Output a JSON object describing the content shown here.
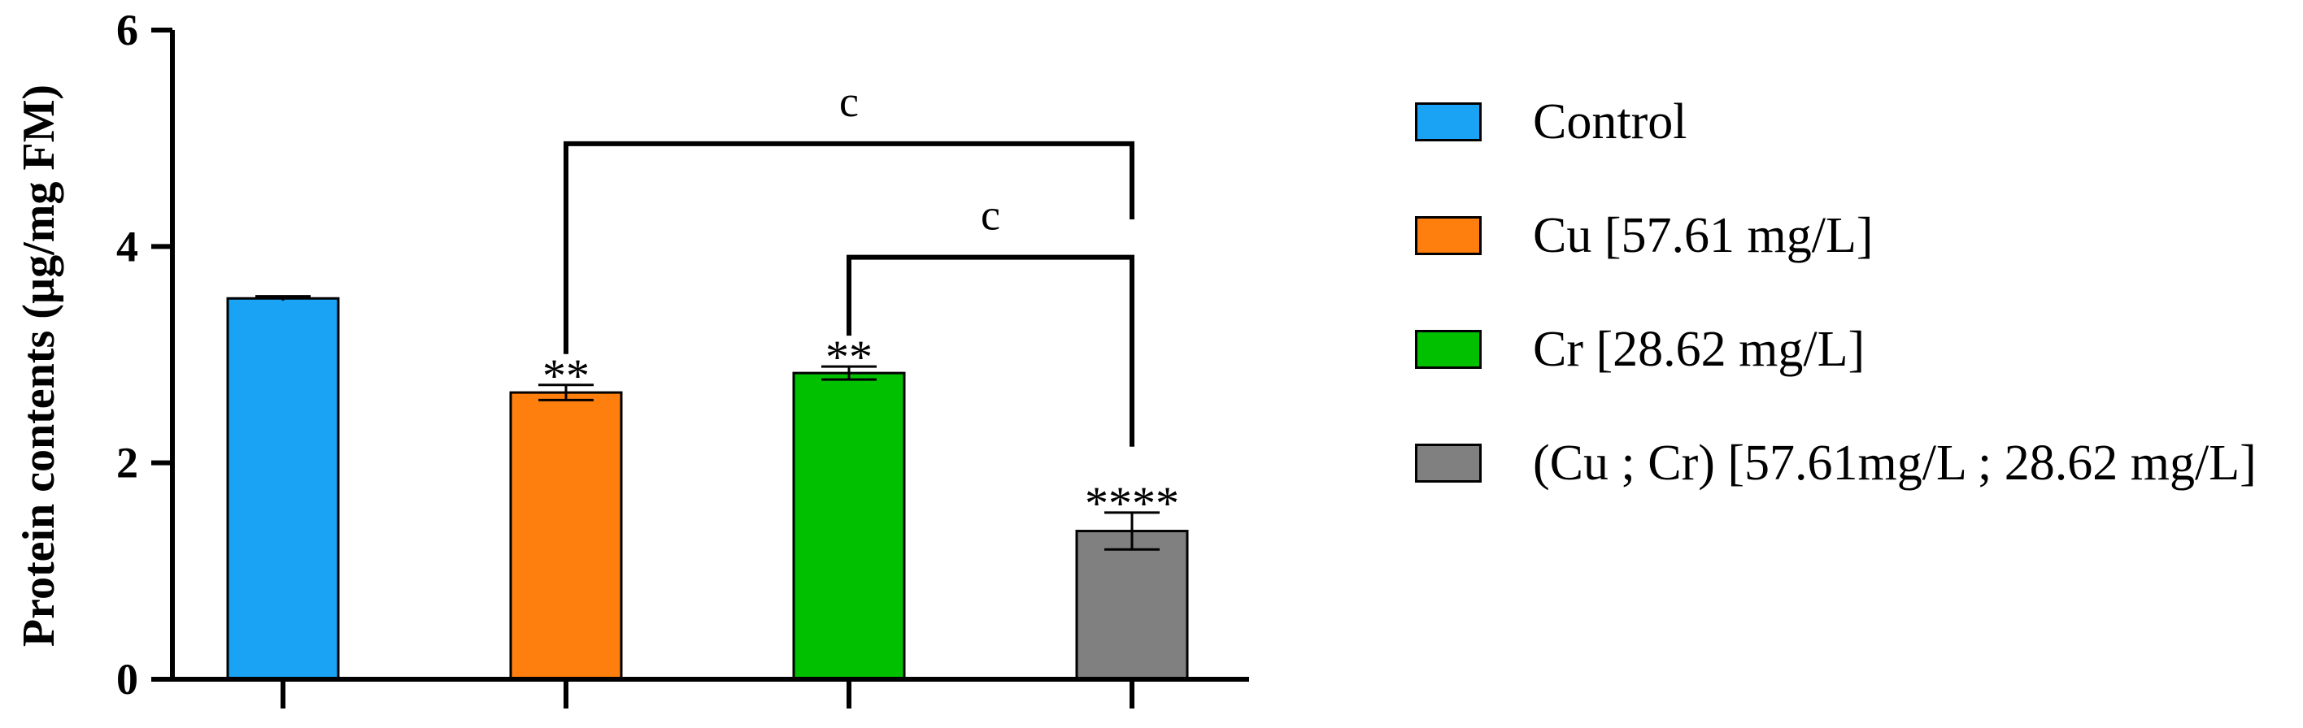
{
  "chart_data": {
    "type": "bar",
    "title": "",
    "xlabel": "",
    "ylabel": "Protein contents (µg/mg FM)",
    "ylim": [
      0,
      6
    ],
    "yticks": [
      "0",
      "2",
      "4",
      "6"
    ],
    "grid": false,
    "legend_position": "right",
    "categories": [
      "Control",
      "Cu [57.61 mg/L]",
      "Cr [28.62 mg/L]",
      "(Cu ; Cr) [57.61mg/L ; 28.62 mg/L]"
    ],
    "values": [
      3.52,
      2.65,
      2.83,
      1.37
    ],
    "errors": [
      0.02,
      0.07,
      0.06,
      0.17
    ],
    "colors": [
      "#1aa3f5",
      "#ff7f0e",
      "#00c000",
      "#808080"
    ],
    "significance_marks": [
      "",
      "**",
      "**",
      "****"
    ],
    "comparisons": [
      {
        "from": 1,
        "to": 3,
        "label": "c",
        "y": 4.95
      },
      {
        "from": 2,
        "to": 3,
        "label": "c",
        "y": 3.9
      }
    ]
  }
}
